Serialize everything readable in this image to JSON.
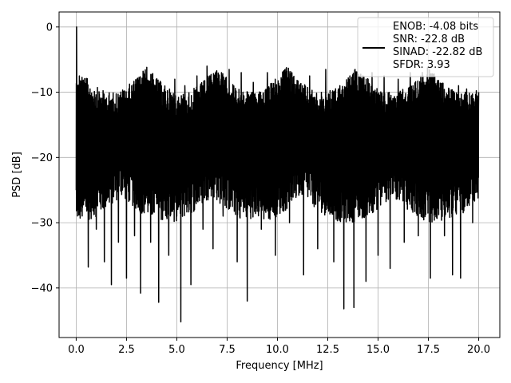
{
  "chart_data": {
    "type": "line",
    "xlabel": "Frequency [MHz]",
    "ylabel": "PSD [dB]",
    "xlim": [
      -0.85,
      21.05
    ],
    "ylim": [
      -47.6,
      2.3
    ],
    "xticks": [
      0.0,
      2.5,
      5.0,
      7.5,
      10.0,
      12.5,
      15.0,
      17.5,
      20.0
    ],
    "xtick_labels": [
      "0.0",
      "2.5",
      "5.0",
      "7.5",
      "10.0",
      "12.5",
      "15.0",
      "17.5",
      "20.0"
    ],
    "yticks": [
      0,
      -10,
      -20,
      -30,
      -40
    ],
    "ytick_labels": [
      "0",
      "−10",
      "−20",
      "−30",
      "−40"
    ],
    "grid": true,
    "legend_position": "top-right",
    "series": [
      {
        "name": "ENOB: -4.08 bits\nSNR: -22.8 dB\nSINAD: -22.82 dB\nSFDR: 3.93",
        "color": "#000000",
        "style": "noise-like power spectral density, approx. -6 to -45 dB across 0–20 MHz with a spike to 0 dB at 0 MHz",
        "points": [
          [
            0.0,
            -25.0
          ],
          [
            0.02,
            0.0
          ],
          [
            0.05,
            -24.0
          ],
          [
            0.1,
            -9.0
          ],
          [
            0.15,
            -25.0
          ],
          [
            0.25,
            -12.0
          ],
          [
            0.4,
            -26.0
          ],
          [
            0.6,
            -36.8
          ],
          [
            0.8,
            -14.0
          ],
          [
            1.0,
            -31.0
          ],
          [
            1.2,
            -12.0
          ],
          [
            1.4,
            -36.0
          ],
          [
            1.6,
            -15.0
          ],
          [
            1.75,
            -39.5
          ],
          [
            1.9,
            -13.0
          ],
          [
            2.1,
            -33.0
          ],
          [
            2.3,
            -12.5
          ],
          [
            2.5,
            -38.5
          ],
          [
            2.7,
            -14.0
          ],
          [
            2.9,
            -32.0
          ],
          [
            3.1,
            -11.0
          ],
          [
            3.2,
            -40.8
          ],
          [
            3.5,
            -12.0
          ],
          [
            3.7,
            -33.0
          ],
          [
            3.9,
            -9.0
          ],
          [
            4.1,
            -42.2
          ],
          [
            4.3,
            -10.0
          ],
          [
            4.6,
            -35.0
          ],
          [
            4.9,
            -8.0
          ],
          [
            5.2,
            -45.2
          ],
          [
            5.4,
            -9.0
          ],
          [
            5.7,
            -39.5
          ],
          [
            6.0,
            -7.5
          ],
          [
            6.3,
            -31.0
          ],
          [
            6.5,
            -6.0
          ],
          [
            6.8,
            -34.0
          ],
          [
            7.0,
            -8.0
          ],
          [
            7.3,
            -29.0
          ],
          [
            7.6,
            -6.5
          ],
          [
            8.0,
            -36.0
          ],
          [
            8.2,
            -7.0
          ],
          [
            8.5,
            -42.0
          ],
          [
            8.8,
            -8.5
          ],
          [
            9.2,
            -31.0
          ],
          [
            9.5,
            -7.0
          ],
          [
            9.9,
            -35.0
          ],
          [
            10.2,
            -8.0
          ],
          [
            10.6,
            -30.0
          ],
          [
            11.0,
            -9.0
          ],
          [
            11.3,
            -38.0
          ],
          [
            11.6,
            -7.5
          ],
          [
            12.0,
            -34.0
          ],
          [
            12.4,
            -6.5
          ],
          [
            12.8,
            -36.0
          ],
          [
            13.1,
            -9.0
          ],
          [
            13.3,
            -43.2
          ],
          [
            13.6,
            -7.5
          ],
          [
            13.8,
            -43.0
          ],
          [
            14.1,
            -9.0
          ],
          [
            14.4,
            -39.0
          ],
          [
            14.7,
            -7.0
          ],
          [
            15.0,
            -35.0
          ],
          [
            15.3,
            -7.5
          ],
          [
            15.6,
            -37.0
          ],
          [
            16.0,
            -8.0
          ],
          [
            16.3,
            -33.0
          ],
          [
            16.6,
            -7.0
          ],
          [
            17.0,
            -32.0
          ],
          [
            17.4,
            -8.5
          ],
          [
            17.6,
            -38.5
          ],
          [
            17.9,
            -10.0
          ],
          [
            18.3,
            -32.0
          ],
          [
            18.5,
            -10.0
          ],
          [
            18.7,
            -38.0
          ],
          [
            19.0,
            -9.0
          ],
          [
            19.1,
            -38.5
          ],
          [
            19.4,
            -9.5
          ],
          [
            19.7,
            -30.0
          ],
          [
            20.0,
            -10.0
          ]
        ]
      }
    ]
  },
  "colors": {
    "line": "#000000",
    "grid": "#b0b0b0",
    "background": "#ffffff",
    "legend_border": "#cccccc"
  }
}
